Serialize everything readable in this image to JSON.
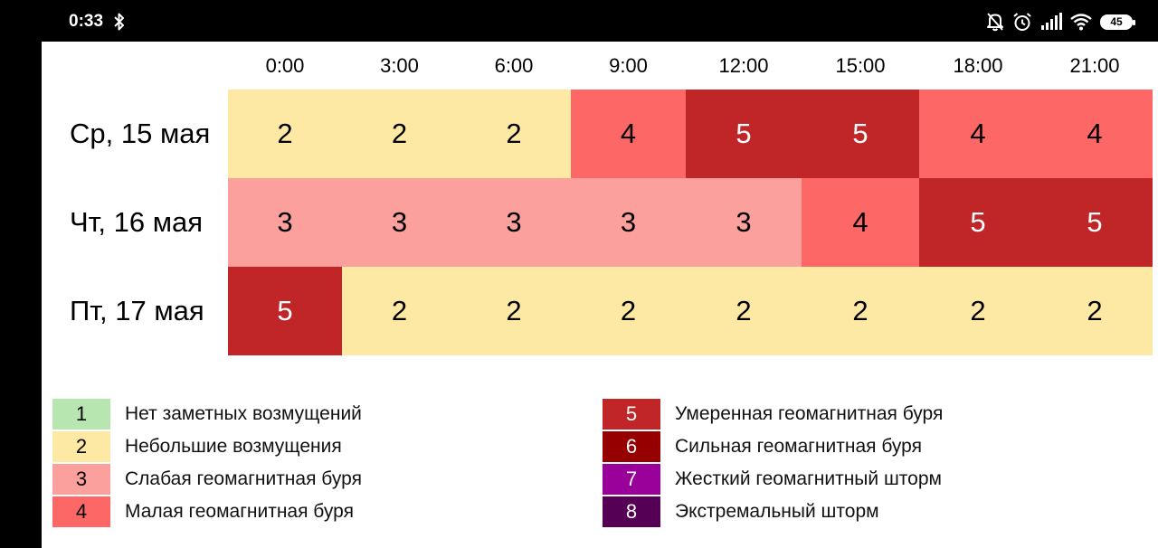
{
  "status_bar": {
    "time": "0:33",
    "battery": "45",
    "icons": [
      "bluetooth-icon",
      "bell-off-icon",
      "alarm-icon",
      "signal-icon",
      "wifi-icon",
      "battery-icon"
    ]
  },
  "forecast": {
    "times": [
      "0:00",
      "3:00",
      "6:00",
      "9:00",
      "12:00",
      "15:00",
      "18:00",
      "21:00"
    ],
    "days": [
      {
        "label": "Ср, 15 мая",
        "values": [
          "2",
          "2",
          "2",
          "4",
          "5",
          "5",
          "4",
          "4"
        ]
      },
      {
        "label": "Чт, 16 мая",
        "values": [
          "3",
          "3",
          "3",
          "3",
          "3",
          "4",
          "5",
          "5"
        ]
      },
      {
        "label": "Пт, 17 мая",
        "values": [
          "5",
          "2",
          "2",
          "2",
          "2",
          "2",
          "2",
          "2"
        ]
      }
    ]
  },
  "colors": {
    "1": "#b8e6b0",
    "2": "#fde9a3",
    "3": "#fca09d",
    "4": "#fd6866",
    "5": "#c02627",
    "6": "#960000",
    "7": "#9a009a",
    "8": "#560055"
  },
  "legend": [
    {
      "level": "1",
      "text": "Нет заметных возмущений"
    },
    {
      "level": "2",
      "text": "Небольшие возмущения"
    },
    {
      "level": "3",
      "text": "Слабая геомагнитная буря"
    },
    {
      "level": "4",
      "text": "Малая геомагнитная буря"
    },
    {
      "level": "5",
      "text": "Умеренная геомагнитная буря"
    },
    {
      "level": "6",
      "text": "Сильная геомагнитная буря"
    },
    {
      "level": "7",
      "text": "Жесткий геомагнитный шторм"
    },
    {
      "level": "8",
      "text": "Экстремальный шторм"
    }
  ]
}
